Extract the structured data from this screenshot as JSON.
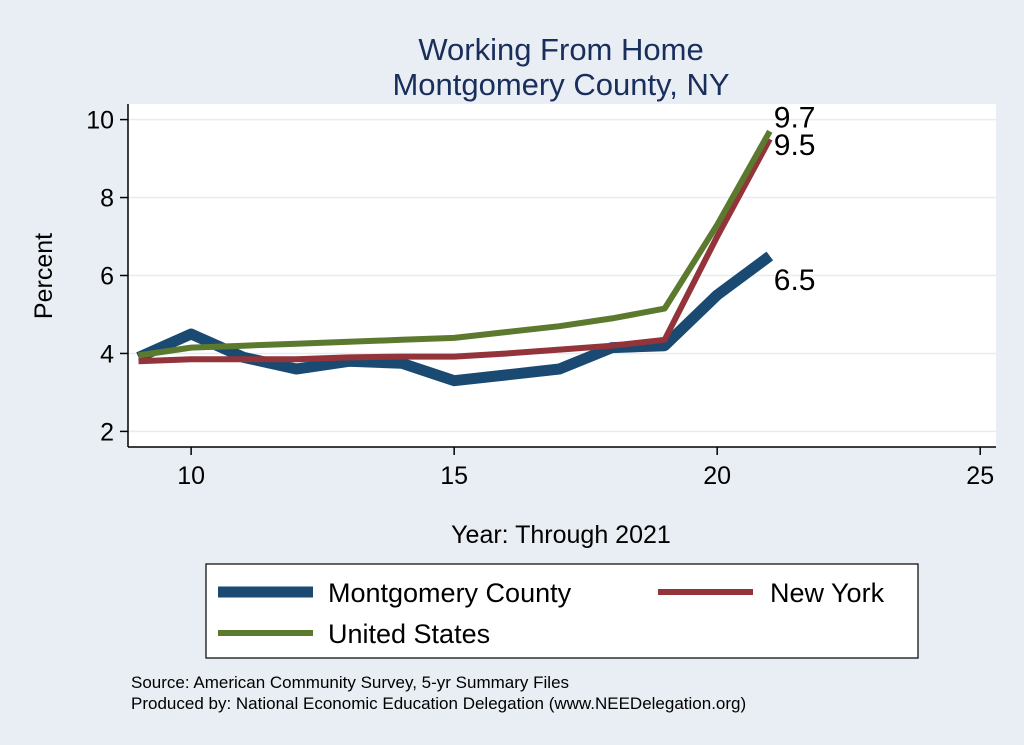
{
  "chart_data": {
    "type": "line",
    "title": "Working From Home",
    "subtitle": "Montgomery County, NY",
    "xlabel": "Year: Through 2021",
    "ylabel": "Percent",
    "xlim": [
      8.8,
      25.3
    ],
    "ylim": [
      1.6,
      10.4
    ],
    "xticks": [
      "10",
      "15",
      "20",
      "25"
    ],
    "yticks": [
      "2",
      "4",
      "6",
      "8",
      "10"
    ],
    "grid": true,
    "legend_position": "bottom",
    "series": [
      {
        "name": "Montgomery County",
        "color": "#1a4a72",
        "x": [
          9,
          10,
          11,
          12,
          13,
          14,
          15,
          16,
          17,
          18,
          19,
          20,
          21
        ],
        "values": [
          3.9,
          4.5,
          3.9,
          3.6,
          3.8,
          3.75,
          3.3,
          3.45,
          3.6,
          4.15,
          4.2,
          5.5,
          6.5
        ],
        "end_label": "6.5"
      },
      {
        "name": "New York",
        "color": "#92343a",
        "x": [
          9,
          10,
          11,
          12,
          13,
          14,
          15,
          16,
          17,
          18,
          19,
          20,
          21
        ],
        "values": [
          3.8,
          3.85,
          3.85,
          3.85,
          3.9,
          3.92,
          3.92,
          4.0,
          4.1,
          4.2,
          4.35,
          7.0,
          9.5
        ],
        "end_label": "9.5"
      },
      {
        "name": "United States",
        "color": "#5b7a2e",
        "x": [
          9,
          10,
          11,
          12,
          13,
          14,
          15,
          16,
          17,
          18,
          19,
          20,
          21
        ],
        "values": [
          3.95,
          4.15,
          4.2,
          4.25,
          4.3,
          4.35,
          4.4,
          4.55,
          4.7,
          4.9,
          5.15,
          7.3,
          9.7
        ],
        "end_label": "9.7"
      }
    ],
    "notes": [
      "Source: American Community Survey, 5-yr Summary Files",
      "Produced by: National Economic Education Delegation (www.NEEDelegation.org)"
    ]
  }
}
